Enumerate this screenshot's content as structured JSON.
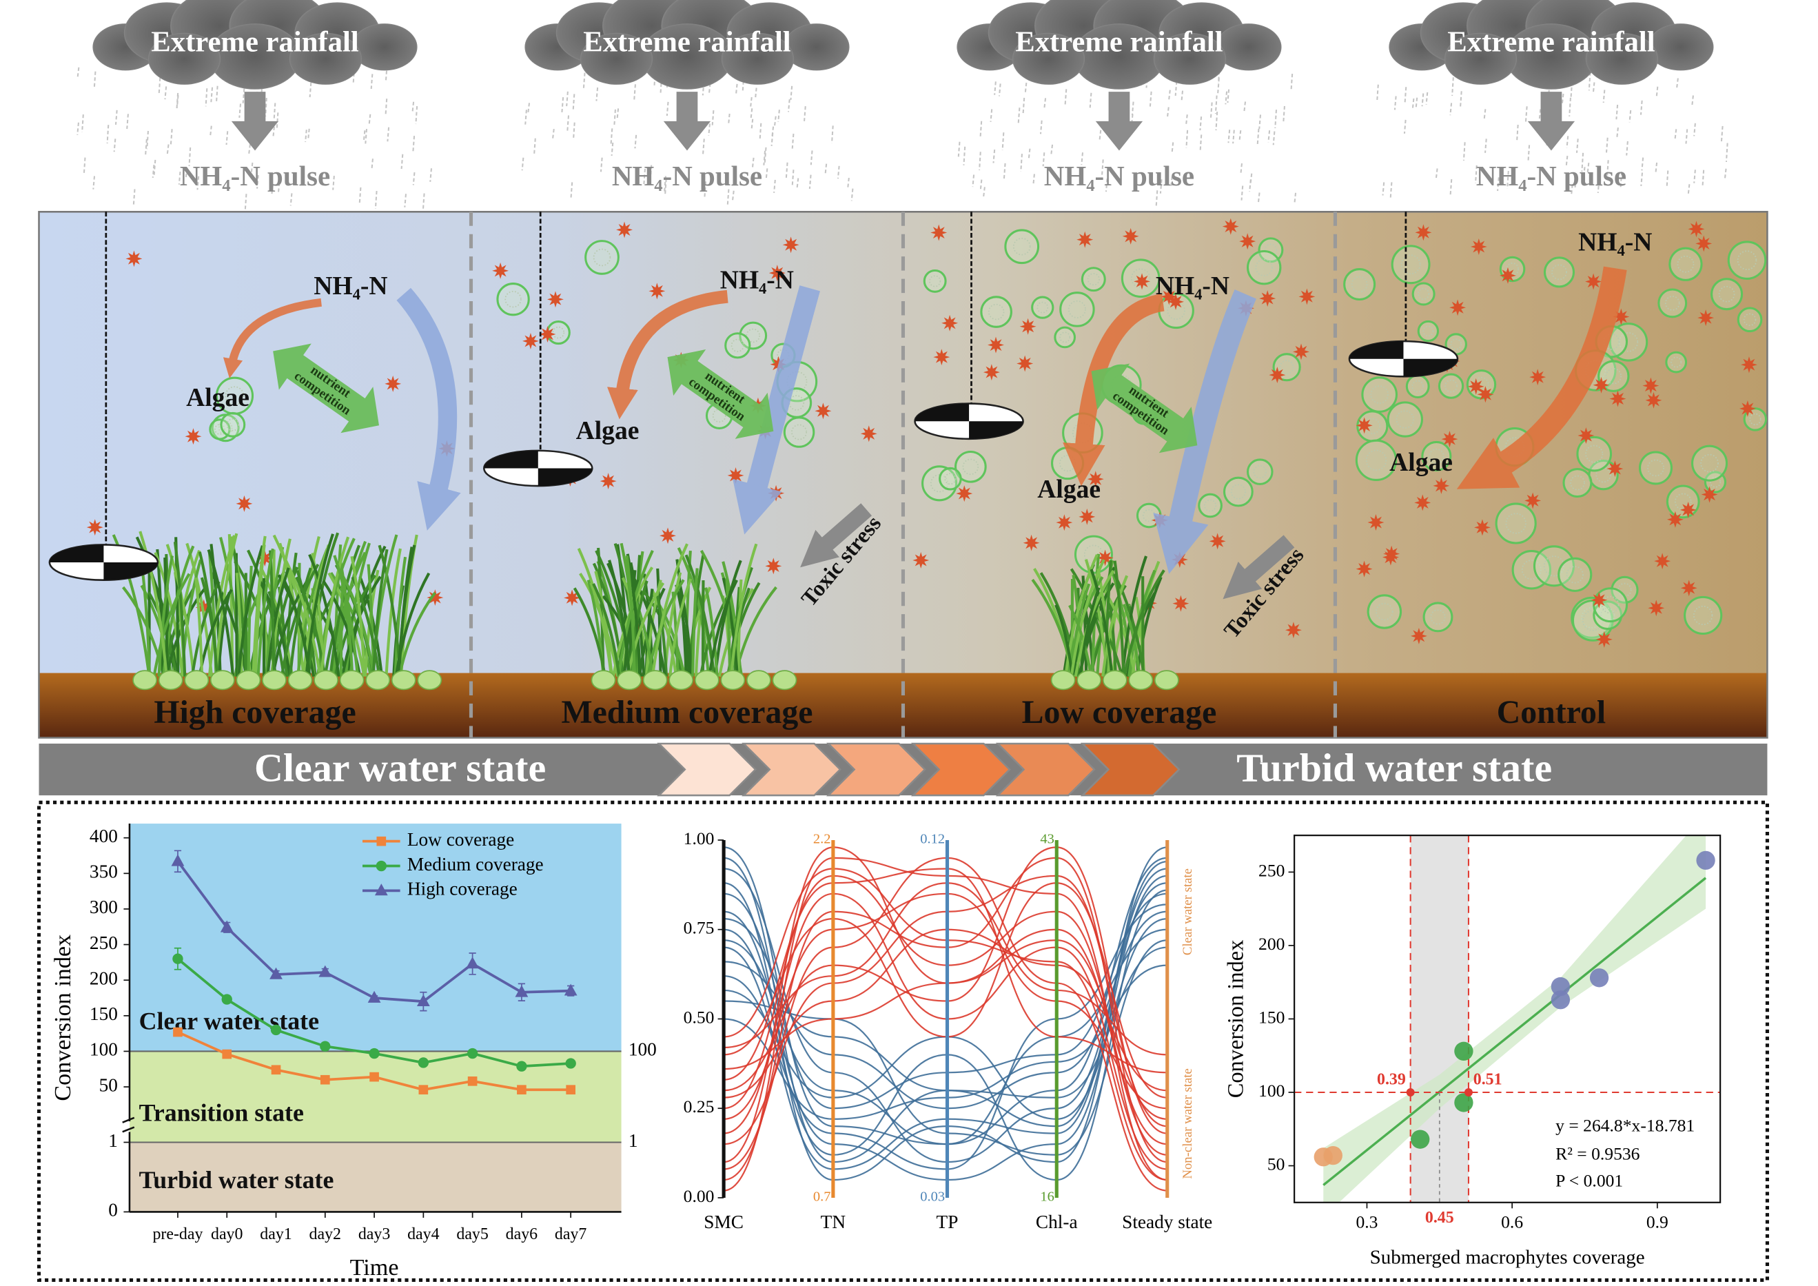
{
  "diagram": {
    "panels": [
      {
        "rainfall": "Extreme rainfall",
        "pulse": "NH₄-N pulse",
        "nh4": "NH₄-N",
        "algae": "Algae",
        "competition": [
          "nutrient",
          "competition"
        ],
        "label": "High coverage"
      },
      {
        "rainfall": "Extreme rainfall",
        "pulse": "NH₄-N pulse",
        "nh4": "NH₄-N",
        "algae": "Algae",
        "competition": [
          "nutrient",
          "competition"
        ],
        "toxic": "Toxic stress",
        "label": "Medium coverage"
      },
      {
        "rainfall": "Extreme rainfall",
        "pulse": "NH₄-N pulse",
        "nh4": "NH₄-N",
        "algae": "Algae",
        "competition": [
          "nutrient",
          "competition"
        ],
        "toxic": "Toxic stress",
        "label": "Low coverage"
      },
      {
        "rainfall": "Extreme rainfall",
        "pulse": "NH₄-N pulse",
        "nh4": "NH₄-N",
        "algae": "Algae",
        "label": "Control"
      }
    ],
    "banner": {
      "left": "Clear water state",
      "right": "Turbid water state"
    }
  },
  "chart_data": [
    {
      "type": "line",
      "ylabel": "Conversion index",
      "xlabel": "Time",
      "categories": [
        "pre-day",
        "day0",
        "day1",
        "day2",
        "day3",
        "day4",
        "day5",
        "day6",
        "day7"
      ],
      "series": [
        {
          "name": "Low coverage",
          "color": "#f0833a",
          "marker": "square",
          "values": [
            127,
            96,
            74,
            60,
            64,
            46,
            58,
            46,
            46
          ]
        },
        {
          "name": "Medium coverage",
          "color": "#3aaa47",
          "marker": "circle",
          "values": [
            230,
            173,
            130,
            107,
            97,
            84,
            97,
            79,
            83
          ],
          "errors": [
            15,
            5,
            5,
            5,
            3,
            4,
            4,
            4,
            4
          ]
        },
        {
          "name": "High coverage",
          "color": "#5b5ea6",
          "marker": "triangle",
          "values": [
            367,
            274,
            208,
            211,
            175,
            170,
            223,
            183,
            185
          ],
          "errors": [
            15,
            7,
            5,
            5,
            3,
            13,
            15,
            12,
            7
          ]
        }
      ],
      "ylim": [
        0,
        420
      ],
      "yticks": [
        50,
        100,
        150,
        200,
        250,
        300,
        350,
        400
      ],
      "broken_ylim": [
        0,
        1.15
      ],
      "broken_yticks": [
        0,
        1
      ],
      "y_right_ticks": [
        100,
        1
      ],
      "state_labels": [
        "Clear water state",
        "Transition state",
        "Turbid water state"
      ],
      "state_colors": [
        "#9dd3ef",
        "#d3e8a9",
        "#dfd1bd"
      ],
      "legend": "upper right"
    },
    {
      "type": "parallel",
      "ylim": [
        0,
        1
      ],
      "yticks": [
        {
          "value": 0,
          "label": "0.00"
        },
        {
          "value": 0.25,
          "label": "0.25"
        },
        {
          "value": 0.5,
          "label": "0.50"
        },
        {
          "value": 0.75,
          "label": "0.75"
        },
        {
          "value": 1,
          "label": "1.00"
        }
      ],
      "axes": [
        {
          "name": "SMC",
          "color": "#111111"
        },
        {
          "name": "TN",
          "color": "#e8892f",
          "max": 2.2,
          "min": 0.7
        },
        {
          "name": "TP",
          "color": "#4f86b8",
          "max": 0.12,
          "min": 0.03
        },
        {
          "name": "Chl-a",
          "color": "#5a9b2e",
          "max": 43,
          "min": 16
        },
        {
          "name": "Steady state",
          "color": "#e0904a"
        }
      ],
      "state_labels": [
        "Clear water state",
        "Non-clear water state"
      ],
      "groups": [
        {
          "color": "#3e6e98",
          "lines": [
            [
              0.98,
              0.2,
              0.15,
              0.3,
              0.95
            ],
            [
              0.95,
              0.1,
              0.3,
              0.2,
              0.92
            ],
            [
              0.92,
              0.35,
              0.1,
              0.25,
              0.88
            ],
            [
              0.88,
              0.05,
              0.2,
              0.1,
              0.98
            ],
            [
              0.85,
              0.25,
              0.35,
              0.4,
              0.85
            ],
            [
              0.8,
              0.15,
              0.05,
              0.15,
              0.9
            ],
            [
              0.78,
              0.4,
              0.25,
              0.35,
              0.8
            ],
            [
              0.75,
              0.12,
              0.4,
              0.05,
              0.86
            ],
            [
              0.72,
              0.3,
              0.15,
              0.45,
              0.75
            ],
            [
              0.7,
              0.08,
              0.22,
              0.18,
              0.94
            ],
            [
              0.66,
              0.45,
              0.3,
              0.28,
              0.7
            ],
            [
              0.62,
              0.18,
              0.08,
              0.5,
              0.82
            ],
            [
              0.58,
              0.28,
              0.45,
              0.22,
              0.78
            ],
            [
              0.55,
              0.5,
              0.18,
              0.12,
              0.72
            ],
            [
              0.5,
              0.22,
              0.28,
              0.38,
              0.65
            ]
          ]
        },
        {
          "color": "#dc3a2c",
          "lines": [
            [
              0.02,
              0.95,
              0.9,
              0.85,
              0.05
            ],
            [
              0.05,
              0.8,
              0.7,
              0.95,
              0.1
            ],
            [
              0.08,
              0.7,
              0.95,
              0.6,
              0.02
            ],
            [
              0.1,
              0.98,
              0.6,
              0.75,
              0.15
            ],
            [
              0.15,
              0.6,
              0.8,
              0.9,
              0.2
            ],
            [
              0.18,
              0.85,
              0.5,
              0.7,
              0.08
            ],
            [
              0.22,
              0.75,
              0.85,
              0.55,
              0.25
            ],
            [
              0.25,
              0.9,
              0.65,
              0.8,
              0.12
            ],
            [
              0.28,
              0.55,
              0.75,
              0.65,
              0.3
            ],
            [
              0.3,
              0.65,
              0.55,
              0.98,
              0.18
            ],
            [
              0.33,
              0.88,
              0.92,
              0.45,
              0.35
            ],
            [
              0.36,
              0.5,
              0.6,
              0.72,
              0.22
            ],
            [
              0.4,
              0.78,
              0.45,
              0.88,
              0.28
            ],
            [
              0.42,
              0.62,
              0.88,
              0.58,
              0.4
            ],
            [
              0.45,
              0.92,
              0.72,
              0.66,
              0.05
            ]
          ]
        }
      ]
    },
    {
      "type": "scatter",
      "ylabel": "Conversion index",
      "xlabel": "Submerged macrophytes coverage",
      "xlim": [
        0.15,
        1.03
      ],
      "ylim": [
        25,
        275
      ],
      "xticks": [
        0.3,
        0.6,
        0.9
      ],
      "yticks": [
        50,
        100,
        150,
        200,
        250
      ],
      "series": [
        {
          "color": "#e8a06a",
          "x": [
            0.21,
            0.23
          ],
          "values": [
            56,
            57
          ]
        },
        {
          "color": "#3da447",
          "x": [
            0.41,
            0.5,
            0.5
          ],
          "values": [
            68,
            128,
            93
          ]
        },
        {
          "color": "#7680b8",
          "x": [
            0.7,
            0.7,
            0.78,
            1.0
          ],
          "values": [
            172,
            163,
            178,
            258
          ]
        }
      ],
      "fit": {
        "slope": 264.8,
        "intercept": -18.781,
        "xlim": [
          0.21,
          1.0
        ],
        "color": "#4caf50",
        "label": "y = 264.8*x-18.781"
      },
      "ci": {
        "x": [
          0.21,
          0.45,
          0.7,
          1.0
        ],
        "lower": [
          15,
          89,
          158,
          225
        ],
        "upper": [
          62,
          112,
          178,
          290
        ]
      },
      "stats": [
        "R² = 0.9536",
        "P < 0.001"
      ],
      "threshold": {
        "y": 100,
        "x": [
          0.39,
          0.51
        ],
        "mid": 0.45,
        "color": "#e03a30"
      }
    }
  ]
}
